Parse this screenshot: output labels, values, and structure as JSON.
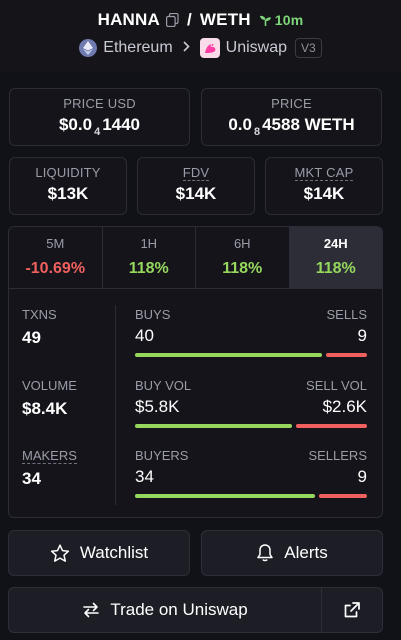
{
  "header": {
    "base_token": "HANNA",
    "separator": "/",
    "quote_token": "WETH",
    "age": "10m",
    "chain": "Ethereum",
    "dex": "Uniswap",
    "version": "V3"
  },
  "prices": {
    "price_usd_label": "PRICE USD",
    "price_usd_prefix": "$0.0",
    "price_usd_zeros": "4",
    "price_usd_digits": "1440",
    "price_label": "PRICE",
    "price_prefix": "0.0",
    "price_zeros": "8",
    "price_digits": "4588 WETH"
  },
  "metrics": {
    "liquidity_label": "LIQUIDITY",
    "liquidity_value": "$13K",
    "fdv_label": "FDV",
    "fdv_value": "$14K",
    "mcap_label": "MKT CAP",
    "mcap_value": "$14K"
  },
  "tabs": [
    {
      "label": "5M",
      "value": "-10.69%"
    },
    {
      "label": "1H",
      "value": "118%"
    },
    {
      "label": "6H",
      "value": "118%"
    },
    {
      "label": "24H",
      "value": "118%"
    }
  ],
  "activity": {
    "txns_label": "TXNS",
    "txns_value": "49",
    "buys_label": "BUYS",
    "buys_value": "40",
    "sells_label": "SELLS",
    "sells_value": "9",
    "volume_label": "VOLUME",
    "volume_value": "$8.4K",
    "buy_vol_label": "BUY VOL",
    "buy_vol_value": "$5.8K",
    "sell_vol_label": "SELL VOL",
    "sell_vol_value": "$2.6K",
    "makers_label": "MAKERS",
    "makers_value": "34",
    "buyers_label": "BUYERS",
    "buyers_value": "34",
    "sellers_label": "SELLERS",
    "sellers_value": "9",
    "buy_ratio": 0.82,
    "volume_buy_ratio": 0.69,
    "buyers_ratio": 0.79
  },
  "actions": {
    "watchlist": "Watchlist",
    "alerts": "Alerts",
    "trade": "Trade on Uniswap"
  },
  "colors": {
    "positive": "#96d75d",
    "negative": "#f0605e",
    "background": "#111118"
  }
}
